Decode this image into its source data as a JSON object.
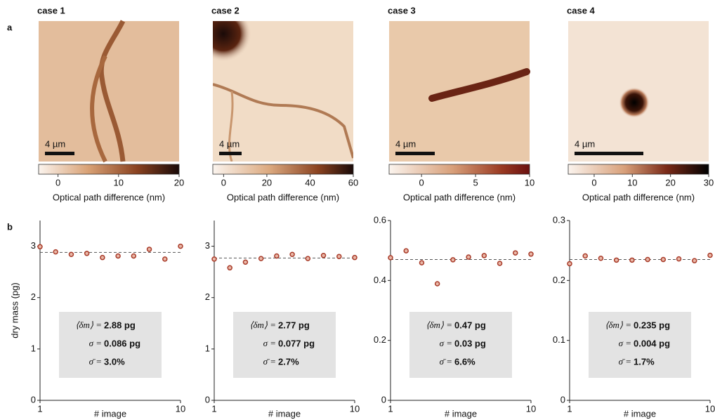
{
  "panel_labels": [
    "a",
    "b"
  ],
  "images": [
    {
      "title": "case 1",
      "scale_bar": "4 µm",
      "colorbar": {
        "lim": [
          -3.2,
          20
        ],
        "ticks": [
          0,
          10,
          20
        ],
        "label": "Optical path difference  (nm)"
      }
    },
    {
      "title": "case 2",
      "scale_bar": "4 µm",
      "colorbar": {
        "lim": [
          -5,
          60
        ],
        "ticks": [
          0,
          20,
          40,
          60
        ],
        "label": "Optical path difference  (nm)"
      }
    },
    {
      "title": "case 3",
      "scale_bar": "4 µm",
      "colorbar": {
        "lim": [
          -3,
          10
        ],
        "ticks": [
          0,
          5,
          10
        ],
        "label": "Optical path difference  (nm)"
      }
    },
    {
      "title": "case 4",
      "scale_bar": "4 µm",
      "colorbar": {
        "lim": [
          -6.8,
          30
        ],
        "ticks": [
          0,
          10,
          20,
          30
        ],
        "label": "Optical path difference  (nm)"
      }
    }
  ],
  "chart_data": [
    {
      "type": "scatter",
      "y_label": "dry mass  (pg)",
      "x_label": "# image",
      "x": [
        1,
        2,
        3,
        4,
        5,
        6,
        7,
        8,
        9,
        10
      ],
      "values": [
        2.99,
        2.89,
        2.84,
        2.86,
        2.78,
        2.81,
        2.81,
        2.94,
        2.75,
        3.0
      ],
      "mean": 2.88,
      "xlim": [
        1,
        10
      ],
      "xticks": [
        1,
        10
      ],
      "ylim": [
        0,
        3.5
      ],
      "yticks": [
        0,
        1,
        2,
        3
      ],
      "color": "#a83a28",
      "stats": [
        {
          "symbol": "⟨δm⟩ =",
          "value": "2.88 pg"
        },
        {
          "symbol": "σ =",
          "value": "0.086 pg"
        },
        {
          "symbol": "σ̄ =",
          "value": "3.0%"
        }
      ]
    },
    {
      "type": "scatter",
      "x_label": "# image",
      "x": [
        1,
        2,
        3,
        4,
        5,
        6,
        7,
        8,
        9,
        10
      ],
      "values": [
        2.75,
        2.58,
        2.69,
        2.76,
        2.81,
        2.84,
        2.76,
        2.82,
        2.8,
        2.78
      ],
      "mean": 2.77,
      "xlim": [
        1,
        10
      ],
      "xticks": [
        1,
        10
      ],
      "ylim": [
        0,
        3.5
      ],
      "yticks": [
        0,
        1,
        2,
        3
      ],
      "color": "#a83a28",
      "stats": [
        {
          "symbol": "⟨δm⟩ =",
          "value": "2.77 pg"
        },
        {
          "symbol": "σ =",
          "value": "0.077 pg"
        },
        {
          "symbol": "σ̄ =",
          "value": "2.7%"
        }
      ]
    },
    {
      "type": "scatter",
      "x_label": "# image",
      "x": [
        1,
        2,
        3,
        4,
        5,
        6,
        7,
        8,
        9,
        10
      ],
      "values": [
        0.476,
        0.499,
        0.459,
        0.389,
        0.469,
        0.478,
        0.483,
        0.457,
        0.492,
        0.488
      ],
      "mean": 0.47,
      "xlim": [
        1,
        10
      ],
      "xticks": [
        1,
        10
      ],
      "ylim": [
        0,
        0.6
      ],
      "yticks": [
        0,
        0.2,
        0.4,
        0.6
      ],
      "color": "#a83a28",
      "stats": [
        {
          "symbol": "⟨δm⟩ =",
          "value": "0.47 pg"
        },
        {
          "symbol": "σ =",
          "value": "0.03 pg"
        },
        {
          "symbol": "σ̄ =",
          "value": "6.6%"
        }
      ]
    },
    {
      "type": "scatter",
      "x_label": "# image",
      "x": [
        1,
        2,
        3,
        4,
        5,
        6,
        7,
        8,
        9,
        10
      ],
      "values": [
        0.228,
        0.241,
        0.237,
        0.234,
        0.234,
        0.235,
        0.235,
        0.236,
        0.233,
        0.242
      ],
      "mean": 0.235,
      "xlim": [
        1,
        10
      ],
      "xticks": [
        1,
        10
      ],
      "ylim": [
        0,
        0.3
      ],
      "yticks": [
        0,
        0.1,
        0.2,
        0.3
      ],
      "color": "#a83a28",
      "stats": [
        {
          "symbol": "⟨δm⟩ =",
          "value": "0.235 pg"
        },
        {
          "symbol": "σ =",
          "value": "0.004 pg"
        },
        {
          "symbol": "σ̄ =",
          "value": "1.7%"
        }
      ]
    }
  ]
}
